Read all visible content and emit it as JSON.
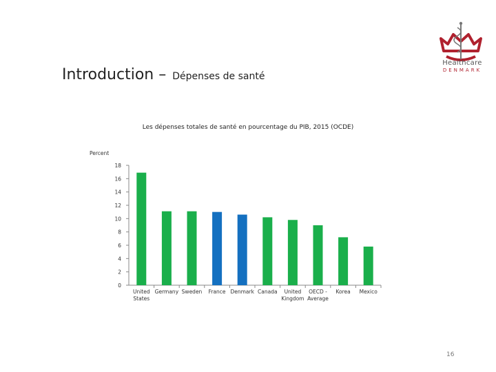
{
  "slide": {
    "title": "Introduction",
    "separator": "–",
    "subtitle": "Dépenses de santé",
    "page_number": "16"
  },
  "logo": {
    "line1": "Healthcare",
    "line2": "DENMARK",
    "icon": "crown-caduceus-icon",
    "colors": {
      "crown": "#b0212e",
      "staff": "#777777"
    }
  },
  "chart_data": {
    "type": "bar",
    "title": "Les dépenses totales de santé en pourcentage du PIB, 2015 (OCDE)",
    "ylabel": "Percent",
    "xlabel": "",
    "ylim": [
      0,
      18
    ],
    "yticks": [
      0,
      2,
      4,
      6,
      8,
      10,
      12,
      14,
      16,
      18
    ],
    "categories": [
      [
        "United",
        "States"
      ],
      [
        "Germany"
      ],
      [
        "Sweden"
      ],
      [
        "France"
      ],
      [
        "Denmark"
      ],
      [
        "Canada"
      ],
      [
        "United",
        "Kingdom"
      ],
      [
        "OECD -",
        "Average"
      ],
      [
        "Korea"
      ],
      [
        "Mexico"
      ]
    ],
    "values": [
      16.9,
      11.1,
      11.1,
      11.0,
      10.6,
      10.2,
      9.8,
      9.0,
      7.2,
      5.8
    ],
    "colors": [
      "#1aaf4b",
      "#1aaf4b",
      "#1aaf4b",
      "#1470c0",
      "#1470c0",
      "#1aaf4b",
      "#1aaf4b",
      "#1aaf4b",
      "#1aaf4b",
      "#1aaf4b"
    ],
    "grid": false,
    "legend": "none"
  }
}
